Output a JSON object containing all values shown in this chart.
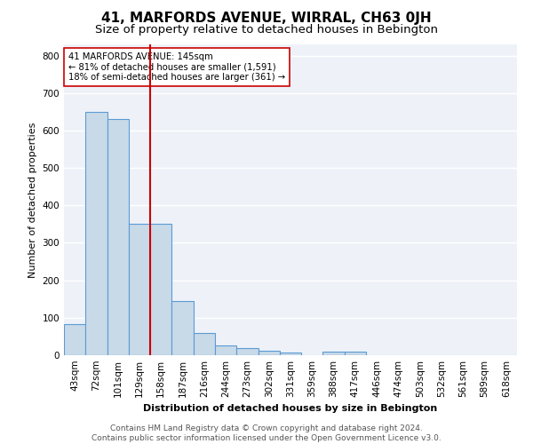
{
  "title": "41, MARFORDS AVENUE, WIRRAL, CH63 0JH",
  "subtitle": "Size of property relative to detached houses in Bebington",
  "xlabel": "Distribution of detached houses by size in Bebington",
  "ylabel": "Number of detached properties",
  "categories": [
    "43sqm",
    "72sqm",
    "101sqm",
    "129sqm",
    "158sqm",
    "187sqm",
    "216sqm",
    "244sqm",
    "273sqm",
    "302sqm",
    "331sqm",
    "359sqm",
    "388sqm",
    "417sqm",
    "446sqm",
    "474sqm",
    "503sqm",
    "532sqm",
    "561sqm",
    "589sqm",
    "618sqm"
  ],
  "values": [
    83,
    650,
    630,
    350,
    350,
    145,
    60,
    25,
    20,
    12,
    7,
    0,
    10,
    10,
    0,
    0,
    0,
    0,
    0,
    0,
    0
  ],
  "bar_color": "#c8d9e8",
  "bar_edge_color": "#5b9bd5",
  "vline_x": 3.5,
  "vline_color": "#cc0000",
  "annotation_text": "41 MARFORDS AVENUE: 145sqm\n← 81% of detached houses are smaller (1,591)\n18% of semi-detached houses are larger (361) →",
  "annotation_box_color": "white",
  "annotation_box_edge": "#cc0000",
  "ylim": [
    0,
    830
  ],
  "yticks": [
    0,
    100,
    200,
    300,
    400,
    500,
    600,
    700,
    800
  ],
  "footer_text": "Contains HM Land Registry data © Crown copyright and database right 2024.\nContains public sector information licensed under the Open Government Licence v3.0.",
  "bg_color": "#eef2f8",
  "grid_color": "white",
  "title_fontsize": 11,
  "subtitle_fontsize": 9.5,
  "axis_label_fontsize": 8,
  "tick_fontsize": 7.5,
  "footer_fontsize": 6.5
}
